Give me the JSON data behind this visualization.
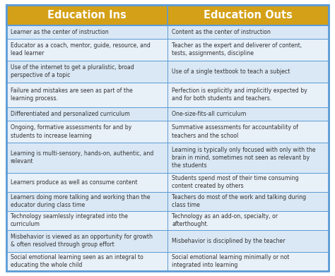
{
  "title_left": "Education Ins",
  "title_right": "Education Outs",
  "header_bg": "#D4A017",
  "header_text_color": "#FFFFFF",
  "row_bg_odd": "#DAE8F5",
  "row_bg_even": "#E8F0F8",
  "border_color": "#5B9BD5",
  "outer_border_color": "#5B9BD5",
  "text_color": "#333333",
  "rows": [
    [
      "Learner as the center of instruction",
      "Content as the center of instruction"
    ],
    [
      "Educator as a coach, mentor, guide, resource, and\nlead learner",
      "Teacher as the expert and deliverer of content,\ntests, assignments, discipline"
    ],
    [
      "Use of the internet to get a pluralistic, broad\nperspective of a topic",
      "Use of a single textbook to teach a subject"
    ],
    [
      "Failure and mistakes are seen as part of the\nlearning process.",
      "Perfection is explicitly and implicitly expected by\nand for both students and teachers."
    ],
    [
      "Differentiated and personalized curriculum",
      "One-size-fits-all curriculum"
    ],
    [
      "Ongoing, formative assessments for and by\nstudents to increase learning",
      "Summative assessments for accountability of\nteachers and the school"
    ],
    [
      "Learning is multi-sensory, hands-on, authentic, and\nrelevant",
      "Learning is typically only focused with only with the\nbrain in mind, sometimes not seen as relevant by\nthe students"
    ],
    [
      "Learners produce as well as consume content",
      "Students spend most of their time consuming\ncontent created by others"
    ],
    [
      "Learners doing more talking and working than the\neducator during class time",
      "Teachers do most of the work and talking during\nclass time"
    ],
    [
      "Technology seamlessly integrated into the\ncurriculum",
      "Technology as an add-on, specialty, or\nafterthought."
    ],
    [
      "Misbehavior is viewed as an opportunity for growth\n& often resolved through group effort",
      "Misbehavior is disciplined by the teacher"
    ],
    [
      "Social emotional learning seen as an integral to\neducating the whole child",
      "Social emotional learning minimally or not\nintegrated into learning"
    ]
  ],
  "row_heights_rel": [
    1.0,
    1.6,
    1.6,
    1.8,
    1.0,
    1.6,
    2.2,
    1.4,
    1.4,
    1.4,
    1.6,
    1.4
  ]
}
